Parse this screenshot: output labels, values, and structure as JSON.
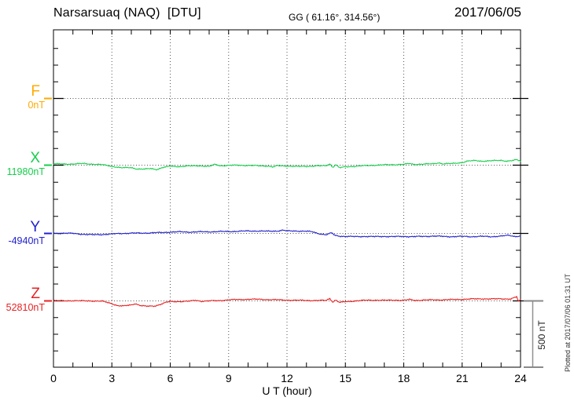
{
  "header": {
    "title": "Narsarsuaq (NAQ)  [DTU]",
    "coords": "GG ( 61.16°, 314.56°)",
    "date": "2017/06/05"
  },
  "side_note": "Plotted at 2017/07/06 01:31 UT",
  "chart_data": {
    "type": "line",
    "title": "Narsarsuaq (NAQ)  [DTU]",
    "xlabel": "U T (hour)",
    "xlim": [
      0,
      24
    ],
    "x_ticks": [
      0,
      3,
      6,
      9,
      12,
      15,
      18,
      21,
      24
    ],
    "grid": "dotted vertical lines every 3 hours; dotted horizontal line at each channel baseline",
    "scale_bar": {
      "label": "500 nT",
      "span_nT": 500
    },
    "series": [
      {
        "name": "F",
        "baseline_label": "0nT",
        "color": "#FFAA00",
        "points": []
      },
      {
        "name": "X",
        "baseline_label": "11980nT",
        "color": "#17CE4B",
        "points": [
          [
            0,
            10
          ],
          [
            0.5,
            8
          ],
          [
            1,
            9
          ],
          [
            1.5,
            12
          ],
          [
            2,
            8
          ],
          [
            2.5,
            3
          ],
          [
            3,
            -8
          ],
          [
            3.5,
            -20
          ],
          [
            4,
            -18
          ],
          [
            4.3,
            -28
          ],
          [
            4.7,
            -30
          ],
          [
            5,
            -25
          ],
          [
            5.3,
            -32
          ],
          [
            5.6,
            -18
          ],
          [
            6,
            -8
          ],
          [
            6.5,
            -10
          ],
          [
            7,
            -6
          ],
          [
            7.5,
            -4
          ],
          [
            8,
            -10
          ],
          [
            8.3,
            6
          ],
          [
            8.6,
            -4
          ],
          [
            9,
            -2
          ],
          [
            9.5,
            0
          ],
          [
            10,
            -2
          ],
          [
            10.5,
            -4
          ],
          [
            11,
            -6
          ],
          [
            11.3,
            -14
          ],
          [
            11.5,
            -4
          ],
          [
            12,
            -6
          ],
          [
            12.5,
            -10
          ],
          [
            13,
            -8
          ],
          [
            13.5,
            -6
          ],
          [
            14,
            -4
          ],
          [
            14.2,
            10
          ],
          [
            14.35,
            -16
          ],
          [
            14.5,
            4
          ],
          [
            14.7,
            -20
          ],
          [
            15,
            -12
          ],
          [
            15.5,
            -8
          ],
          [
            16,
            -4
          ],
          [
            16.5,
            0
          ],
          [
            17,
            2
          ],
          [
            17.5,
            4
          ],
          [
            18,
            6
          ],
          [
            18.3,
            12
          ],
          [
            18.5,
            6
          ],
          [
            19,
            8
          ],
          [
            19.5,
            10
          ],
          [
            19.8,
            18
          ],
          [
            20,
            10
          ],
          [
            20.5,
            12
          ],
          [
            21,
            20
          ],
          [
            21.3,
            30
          ],
          [
            21.7,
            34
          ],
          [
            22,
            30
          ],
          [
            22.5,
            32
          ],
          [
            23,
            36
          ],
          [
            23.3,
            30
          ],
          [
            23.6,
            34
          ],
          [
            23.8,
            40
          ],
          [
            24,
            30
          ]
        ]
      },
      {
        "name": "Y",
        "baseline_label": "-4940nT",
        "color": "#2222CC",
        "points": [
          [
            0,
            0
          ],
          [
            0.5,
            2
          ],
          [
            1,
            0
          ],
          [
            1.5,
            -6
          ],
          [
            2,
            -10
          ],
          [
            2.5,
            -8
          ],
          [
            3,
            -4
          ],
          [
            3.5,
            0
          ],
          [
            4,
            2
          ],
          [
            4.5,
            2
          ],
          [
            5,
            4
          ],
          [
            5.5,
            6
          ],
          [
            6,
            10
          ],
          [
            6.5,
            12
          ],
          [
            7,
            10
          ],
          [
            7.5,
            12
          ],
          [
            8,
            12
          ],
          [
            8.5,
            14
          ],
          [
            9,
            14
          ],
          [
            9.5,
            16
          ],
          [
            10,
            18
          ],
          [
            10.5,
            18
          ],
          [
            11,
            16
          ],
          [
            11.5,
            18
          ],
          [
            11.8,
            24
          ],
          [
            12,
            18
          ],
          [
            12.5,
            18
          ],
          [
            13,
            16
          ],
          [
            13.3,
            12
          ],
          [
            13.6,
            0
          ],
          [
            14,
            -10
          ],
          [
            14.3,
            4
          ],
          [
            14.45,
            -14
          ],
          [
            14.7,
            -20
          ],
          [
            15,
            -22
          ],
          [
            15.5,
            -24
          ],
          [
            16,
            -22
          ],
          [
            16.5,
            -24
          ],
          [
            17,
            -22
          ],
          [
            17.5,
            -24
          ],
          [
            18,
            -22
          ],
          [
            18.5,
            -24
          ],
          [
            19,
            -22
          ],
          [
            19.5,
            -20
          ],
          [
            20,
            -22
          ],
          [
            20.5,
            -24
          ],
          [
            21,
            -22
          ],
          [
            21.5,
            -24
          ],
          [
            22,
            -22
          ],
          [
            22.5,
            -24
          ],
          [
            23,
            -20
          ],
          [
            23.4,
            -14
          ],
          [
            23.7,
            -22
          ],
          [
            24,
            -20
          ]
        ]
      },
      {
        "name": "Z",
        "baseline_label": "52810nT",
        "color": "#E62222",
        "points": [
          [
            0,
            2
          ],
          [
            0.5,
            0
          ],
          [
            1,
            2
          ],
          [
            1.5,
            0
          ],
          [
            2,
            0
          ],
          [
            2.5,
            -2
          ],
          [
            3,
            -20
          ],
          [
            3.3,
            -35
          ],
          [
            3.6,
            -38
          ],
          [
            4,
            -30
          ],
          [
            4.2,
            -20
          ],
          [
            4.5,
            -35
          ],
          [
            4.8,
            -40
          ],
          [
            5.2,
            -38
          ],
          [
            5.5,
            -25
          ],
          [
            5.8,
            -10
          ],
          [
            6,
            -6
          ],
          [
            6.5,
            -4
          ],
          [
            7,
            -2
          ],
          [
            7.3,
            4
          ],
          [
            7.6,
            -2
          ],
          [
            8,
            0
          ],
          [
            8.5,
            2
          ],
          [
            9,
            8
          ],
          [
            9.5,
            10
          ],
          [
            10,
            12
          ],
          [
            10.5,
            12
          ],
          [
            11,
            10
          ],
          [
            11.5,
            8
          ],
          [
            12,
            6
          ],
          [
            12.5,
            4
          ],
          [
            13,
            4
          ],
          [
            13.5,
            2
          ],
          [
            14,
            4
          ],
          [
            14.2,
            18
          ],
          [
            14.35,
            -8
          ],
          [
            14.5,
            6
          ],
          [
            14.7,
            -12
          ],
          [
            15,
            -6
          ],
          [
            15.5,
            0
          ],
          [
            16,
            4
          ],
          [
            16.5,
            6
          ],
          [
            17,
            4
          ],
          [
            17.5,
            6
          ],
          [
            18,
            4
          ],
          [
            18.3,
            10
          ],
          [
            18.6,
            4
          ],
          [
            19,
            6
          ],
          [
            19.5,
            8
          ],
          [
            20,
            8
          ],
          [
            20.5,
            10
          ],
          [
            21,
            12
          ],
          [
            21.5,
            14
          ],
          [
            22,
            16
          ],
          [
            22.5,
            14
          ],
          [
            23,
            16
          ],
          [
            23.5,
            14
          ],
          [
            23.8,
            30
          ],
          [
            23.9,
            -5
          ],
          [
            24,
            10
          ]
        ]
      }
    ]
  }
}
